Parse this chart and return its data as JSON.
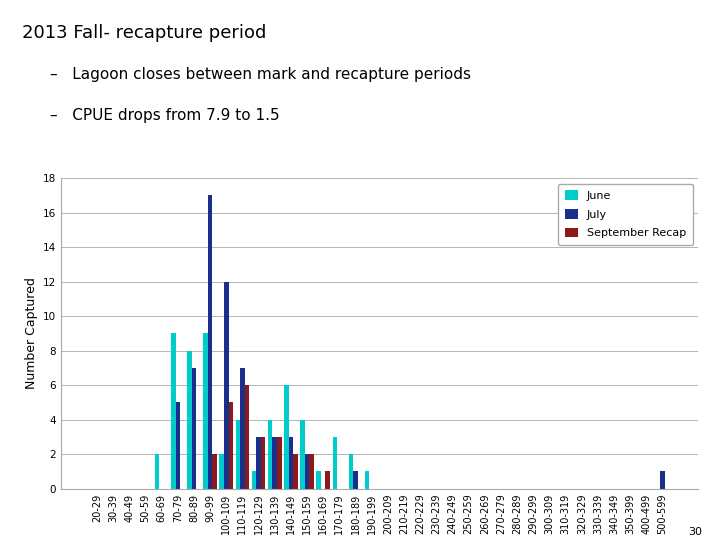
{
  "title_line1": "2013 Fall- recapture period",
  "bullet1": "–   Lagoon closes between mark and recapture periods",
  "bullet2": "–   CPUE drops from 7.9 to 1.5",
  "categories": [
    "20-29",
    "30-39",
    "40-49",
    "50-59",
    "60-69",
    "70-79",
    "80-89",
    "90-99",
    "100-109",
    "110-119",
    "120-129",
    "130-139",
    "140-149",
    "150-159",
    "160-169",
    "170-179",
    "180-189",
    "190-199",
    "200-209",
    "210-219",
    "220-229",
    "230-239",
    "240-249",
    "250-259",
    "260-269",
    "270-279",
    "280-289",
    "290-299",
    "300-309",
    "310-319",
    "320-329",
    "330-339",
    "340-349",
    "350-399",
    "400-499",
    "500-599"
  ],
  "june": [
    0,
    0,
    0,
    0,
    2,
    9,
    8,
    9,
    2,
    4,
    1,
    4,
    6,
    4,
    1,
    3,
    2,
    1,
    0,
    0,
    0,
    0,
    0,
    0,
    0,
    0,
    0,
    0,
    0,
    0,
    0,
    0,
    0,
    0,
    0,
    0
  ],
  "july": [
    0,
    0,
    0,
    0,
    0,
    5,
    7,
    17,
    12,
    7,
    3,
    3,
    3,
    2,
    0,
    0,
    1,
    0,
    0,
    0,
    0,
    0,
    0,
    0,
    0,
    0,
    0,
    0,
    0,
    0,
    0,
    0,
    0,
    0,
    0,
    1
  ],
  "sept": [
    0,
    0,
    0,
    0,
    0,
    0,
    0,
    2,
    5,
    6,
    3,
    3,
    2,
    2,
    1,
    0,
    0,
    0,
    0,
    0,
    0,
    0,
    0,
    0,
    0,
    0,
    0,
    0,
    0,
    0,
    0,
    0,
    0,
    0,
    0,
    0
  ],
  "june_color": "#00CCCC",
  "july_color": "#1A2E8C",
  "sept_color": "#8B1A1A",
  "ylabel": "Number Captured",
  "ylim": [
    0,
    18
  ],
  "yticks": [
    0,
    2,
    4,
    6,
    8,
    10,
    12,
    14,
    16,
    18
  ],
  "page_number": "30",
  "background_color": "#ffffff",
  "title_fontsize": 13,
  "bullet_fontsize": 11,
  "axis_label_fontsize": 9,
  "tick_fontsize": 7,
  "legend_fontsize": 8
}
